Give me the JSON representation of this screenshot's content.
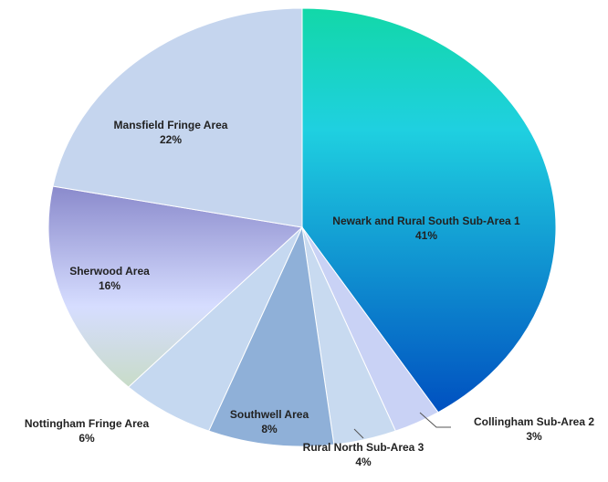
{
  "chart_data": {
    "type": "pie",
    "categories": [
      "Newark and Rural South Sub-Area 1",
      "Collingham Sub-Area 2",
      "Rural North Sub-Area 3",
      "Southwell Area",
      "Nottingham Fringe Area",
      "Sherwood Area",
      "Mansfield Fringe Area"
    ],
    "values": [
      41,
      3,
      4,
      8,
      6,
      16,
      22
    ],
    "value_labels": [
      "41%",
      "3%",
      "4%",
      "8%",
      "6%",
      "16%",
      "22%"
    ],
    "colors": [
      "#1a9fe0",
      "#c9d2f5",
      "#c8daf0",
      "#8fb0d8",
      "#c5d8f0",
      "#aab0e6",
      "#c5d5ee"
    ]
  }
}
